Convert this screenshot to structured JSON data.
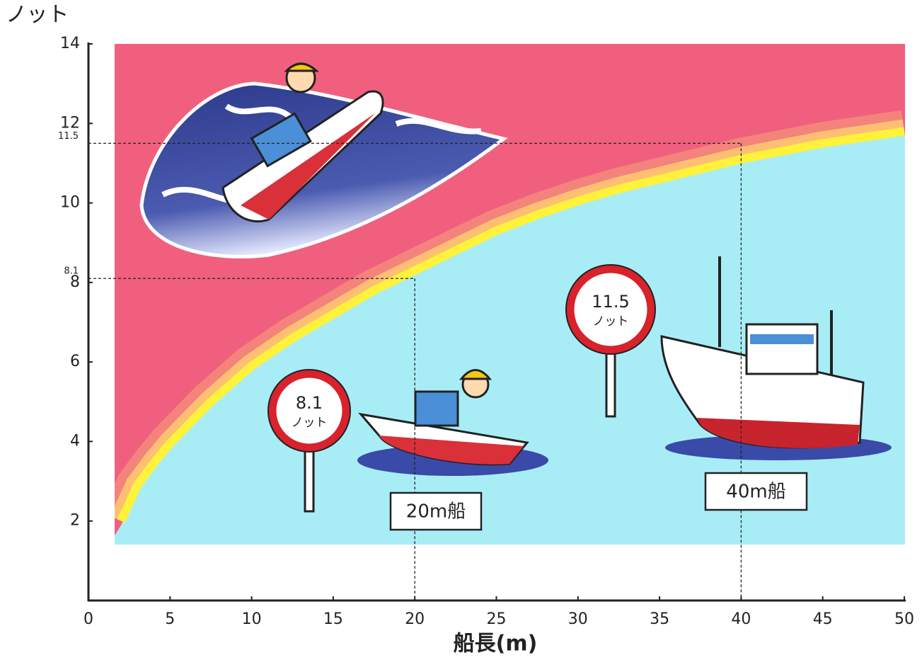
{
  "chart_data": {
    "type": "line",
    "y_label": "ノット",
    "x_label": "船長(m)",
    "xlim": [
      0,
      50
    ],
    "ylim": [
      0,
      14
    ],
    "xticks": [
      0,
      5,
      10,
      15,
      20,
      25,
      30,
      35,
      40,
      45,
      50
    ],
    "yticks": [
      2,
      4,
      6,
      8,
      10,
      12,
      14
    ],
    "series": [
      {
        "color": "#fff23a",
        "x": [
          2,
          3,
          4,
          5,
          7.5,
          10,
          12.5,
          15,
          17.5,
          20,
          22.5,
          25,
          27.5,
          30,
          32.5,
          35,
          37.5,
          40,
          42.5,
          45,
          47.5,
          50
        ],
        "values": [
          2.0,
          2.9,
          3.45,
          3.95,
          5.0,
          5.9,
          6.6,
          7.2,
          7.8,
          8.3,
          8.8,
          9.3,
          9.7,
          10.05,
          10.35,
          10.6,
          10.85,
          11.1,
          11.3,
          11.5,
          11.65,
          11.8
        ]
      }
    ],
    "above_color": "#f0607e",
    "below_color": "#a8edf6",
    "reference_lines": [
      {
        "x": 20,
        "y": 8.1
      },
      {
        "x": 40,
        "y": 11.5
      }
    ],
    "signs": [
      {
        "value": "8.1",
        "unit": "ノット"
      },
      {
        "value": "11.5",
        "unit": "ノット"
      }
    ],
    "ship_labels": [
      "20m船",
      "40m船"
    ]
  }
}
